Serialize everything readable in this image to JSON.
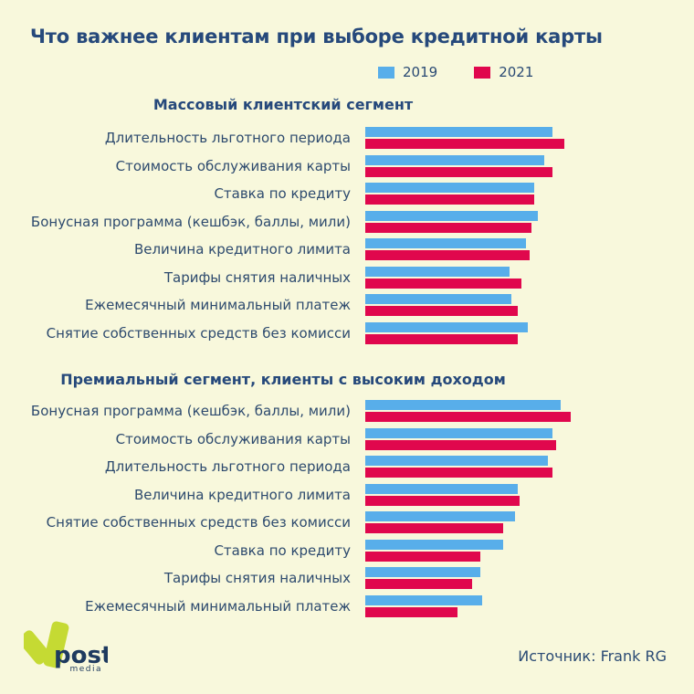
{
  "meta": {
    "title": "Что важнее клиентам при выборе кредитной карты",
    "source_label": "Источник: Frank RG"
  },
  "legend": [
    {
      "label": "2019",
      "color": "#58AEEA"
    },
    {
      "label": "2021",
      "color": "#E0074D"
    }
  ],
  "colors": {
    "background": "#F8F8DC",
    "text_navy": "#26497B",
    "bar_2019": "#58AEEA",
    "bar_2021": "#E0074D",
    "logo_green": "#C5DA33"
  },
  "logo": {
    "brand": "post",
    "sub": "media"
  },
  "chart_data": [
    {
      "type": "bar",
      "orientation": "horizontal",
      "title": "Массовый клиентский сегмент",
      "legend_position": "top",
      "grid": false,
      "axis_labels_shown": false,
      "value_scale": "relative bar length, longest bar in figure = 100 (no numeric axis shown)",
      "categories": [
        "Длительность льготного периода",
        "Стоимость обслуживания карты",
        "Ставка по кредиту",
        "Бонусная программа (кешбэк, баллы, мили)",
        "Величина кредитного лимита",
        "Тарифы снятия наличных",
        "Ежемесячный минимальный платеж",
        "Снятие собственных средств без комисси"
      ],
      "series": [
        {
          "name": "2019",
          "color": "#58AEEA",
          "values": [
            91,
            87,
            82,
            84,
            78,
            70,
            71,
            79
          ]
        },
        {
          "name": "2021",
          "color": "#E0074D",
          "values": [
            97,
            91,
            82,
            81,
            80,
            76,
            74,
            74
          ]
        }
      ]
    },
    {
      "type": "bar",
      "orientation": "horizontal",
      "title": "Премиальный сегмент, клиенты с высоким доходом",
      "legend_position": "top",
      "grid": false,
      "axis_labels_shown": false,
      "value_scale": "relative bar length, longest bar in figure = 100 (no numeric axis shown)",
      "categories": [
        "Бонусная программа (кешбэк, баллы, мили)",
        "Стоимость обслуживания карты",
        "Длительность льготного периода",
        "Величина кредитного лимита",
        "Снятие собственных средств без комисси",
        "Ставка по кредиту",
        "Тарифы снятия наличных",
        "Ежемесячный минимальный платеж"
      ],
      "series": [
        {
          "name": "2019",
          "color": "#58AEEA",
          "values": [
            95,
            91,
            89,
            74,
            73,
            67,
            56,
            57
          ]
        },
        {
          "name": "2021",
          "color": "#E0074D",
          "values": [
            100,
            93,
            91,
            75,
            67,
            56,
            52,
            45
          ]
        }
      ]
    }
  ]
}
